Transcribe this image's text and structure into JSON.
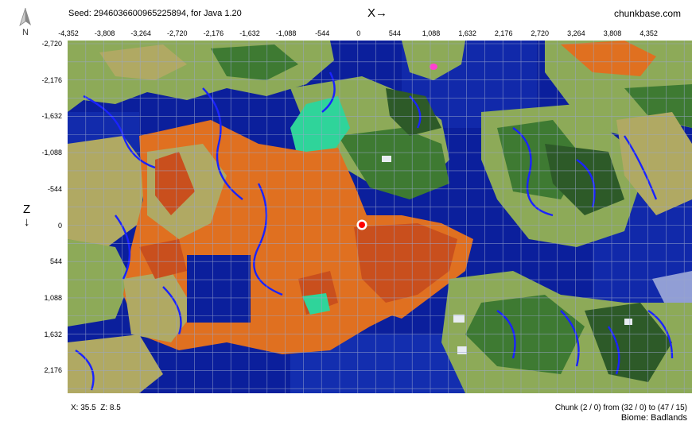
{
  "header": {
    "seed_text": "Seed: 2946036600965225894, for Java 1.20",
    "x_axis_label": "X→",
    "brand": "chunkbase.com",
    "compass_label": "N"
  },
  "axes": {
    "z_axis_label": "Z\n↓",
    "x_ticks": [
      "-4,352",
      "-3,808",
      "-3,264",
      "-2,720",
      "-2,176",
      "-1,632",
      "-1,088",
      "-544",
      "0",
      "544",
      "1,088",
      "1,632",
      "2,176",
      "2,720",
      "3,264",
      "3,808",
      "4,352"
    ],
    "z_ticks": [
      "-2,720",
      "-2,176",
      "-1,632",
      "-1,088",
      "-544",
      "0",
      "544",
      "1,088",
      "1,632",
      "2,176"
    ]
  },
  "map": {
    "marker_icon": "location-dot-icon",
    "colors": {
      "deep_ocean": "#0b1f9c",
      "ocean": "#1734b8",
      "rivers": "#1a23ff",
      "plains": "#8daa58",
      "forest": "#3e7a32",
      "dark_forest": "#2d5a28",
      "savanna": "#b0a963",
      "badlands": "#e07020",
      "badlands_dark": "#c94f1d",
      "lush": "#2fd49a",
      "cherry": "#ff40d0",
      "snow": "#e8ecf2",
      "grid": "#9aa6cc",
      "marker": "#ff0000"
    }
  },
  "footer": {
    "coords": "X: 35.5  Z: 8.5",
    "chunk_info": "Chunk (2 / 0) from (32 / 0) to (47 / 15)",
    "biome_info": "Biome: Badlands"
  }
}
